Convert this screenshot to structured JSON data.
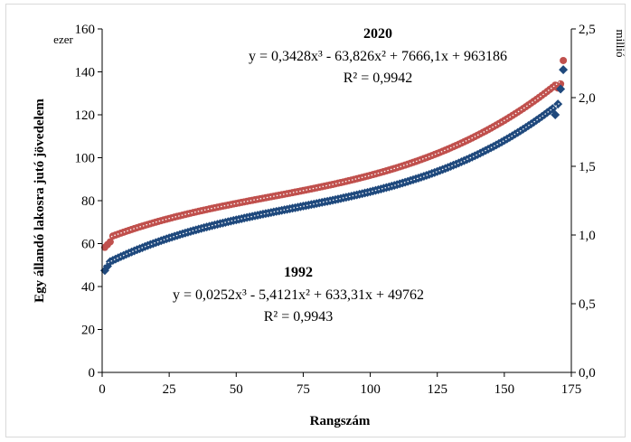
{
  "chart_data": {
    "type": "scatter",
    "xlabel": "Rangszám",
    "ylabel": "Egy állandó lakosra jutó jövedelem",
    "y_unit": "ezer",
    "y2_unit": "millió",
    "xlim": [
      0,
      175
    ],
    "ylim": [
      0,
      160
    ],
    "y2lim": [
      0,
      2.5
    ],
    "x_ticks": [
      "0",
      "25",
      "50",
      "75",
      "100",
      "125",
      "150",
      "175"
    ],
    "y_ticks": [
      "0",
      "20",
      "40",
      "60",
      "80",
      "100",
      "120",
      "140",
      "160"
    ],
    "y2_ticks": [
      "0,0",
      "0,5",
      "1,0",
      "1,5",
      "2,0",
      "2,5"
    ],
    "grid": false,
    "n_points": 172,
    "series": [
      {
        "name": "2020",
        "axis": "right",
        "marker": "circle",
        "color": "#c0504d",
        "equation": "y = 0,3428x³ - 63,826x² + 7666,1x + 963186",
        "r_squared": "R² = 0,9942",
        "fit": [
          0.3428,
          -63.826,
          7666.1,
          963186
        ],
        "scale_divisor": 1000000,
        "anchors": [
          [
            1,
            0.91
          ],
          [
            2,
            0.93
          ],
          [
            3,
            0.95
          ],
          [
            170,
            2.07
          ],
          [
            171,
            2.1
          ],
          [
            172,
            2.27
          ],
          [
            173,
            2.34
          ]
        ]
      },
      {
        "name": "1992",
        "axis": "left",
        "marker": "diamond",
        "color": "#1f497d",
        "equation": "y = 0,0252x³ - 5,4121x² + 633,31x + 49762",
        "r_squared": "R² = 0,9943",
        "fit": [
          0.0252,
          -5.4121,
          633.31,
          49762
        ],
        "scale_divisor": 1000,
        "anchors": [
          [
            1,
            47.5
          ],
          [
            2,
            49.5
          ],
          [
            169,
            120
          ],
          [
            170,
            125
          ],
          [
            171,
            132
          ],
          [
            172,
            141
          ]
        ]
      }
    ]
  },
  "colors": {
    "series_2020": "#c0504d",
    "series_1992": "#1f497d",
    "fit_line": "#ffffff",
    "axis": "#000000",
    "frame": "#d9d9d9"
  }
}
